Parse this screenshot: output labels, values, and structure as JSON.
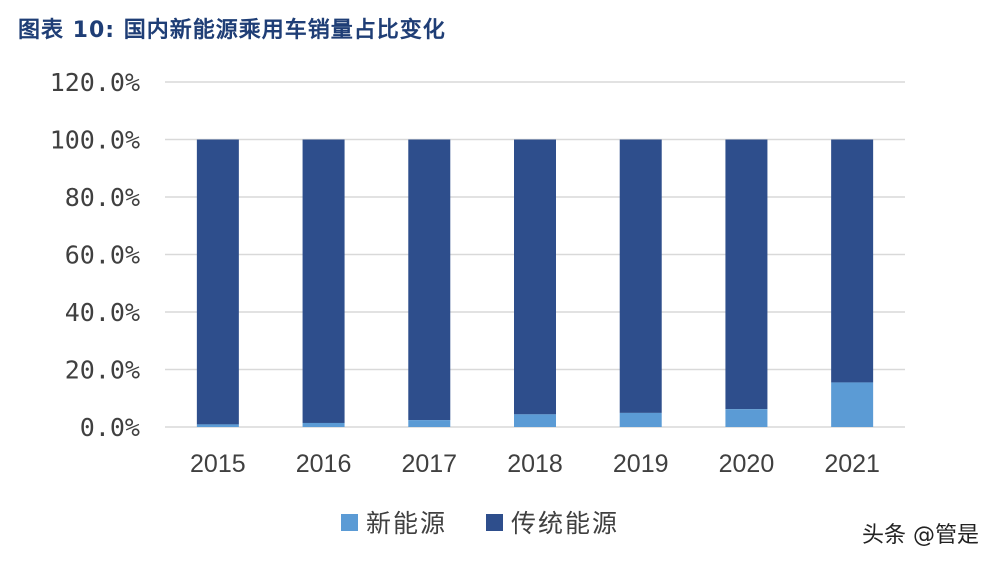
{
  "title": "图表 10: 国内新能源乘用车销量占比变化",
  "watermark": "头条 @管是",
  "colors": {
    "new_energy": "#5b9bd5",
    "traditional": "#2e4e8c",
    "grid": "#d9d9d9"
  },
  "chart_data": {
    "type": "bar",
    "stacked": true,
    "title": "国内新能源乘用车销量占比变化",
    "categories": [
      "2015",
      "2016",
      "2017",
      "2018",
      "2019",
      "2020",
      "2021"
    ],
    "series": [
      {
        "name": "新能源",
        "values": [
          0.9,
          1.4,
          2.4,
          4.4,
          4.9,
          6.2,
          15.5
        ]
      },
      {
        "name": "传统能源",
        "values": [
          99.1,
          98.6,
          97.6,
          95.6,
          95.1,
          93.8,
          84.5
        ]
      }
    ],
    "yticks": [
      "0.0%",
      "20.0%",
      "40.0%",
      "60.0%",
      "80.0%",
      "100.0%",
      "120.0%"
    ],
    "ylim": [
      0,
      120
    ],
    "grid": true,
    "legend_position": "bottom"
  }
}
